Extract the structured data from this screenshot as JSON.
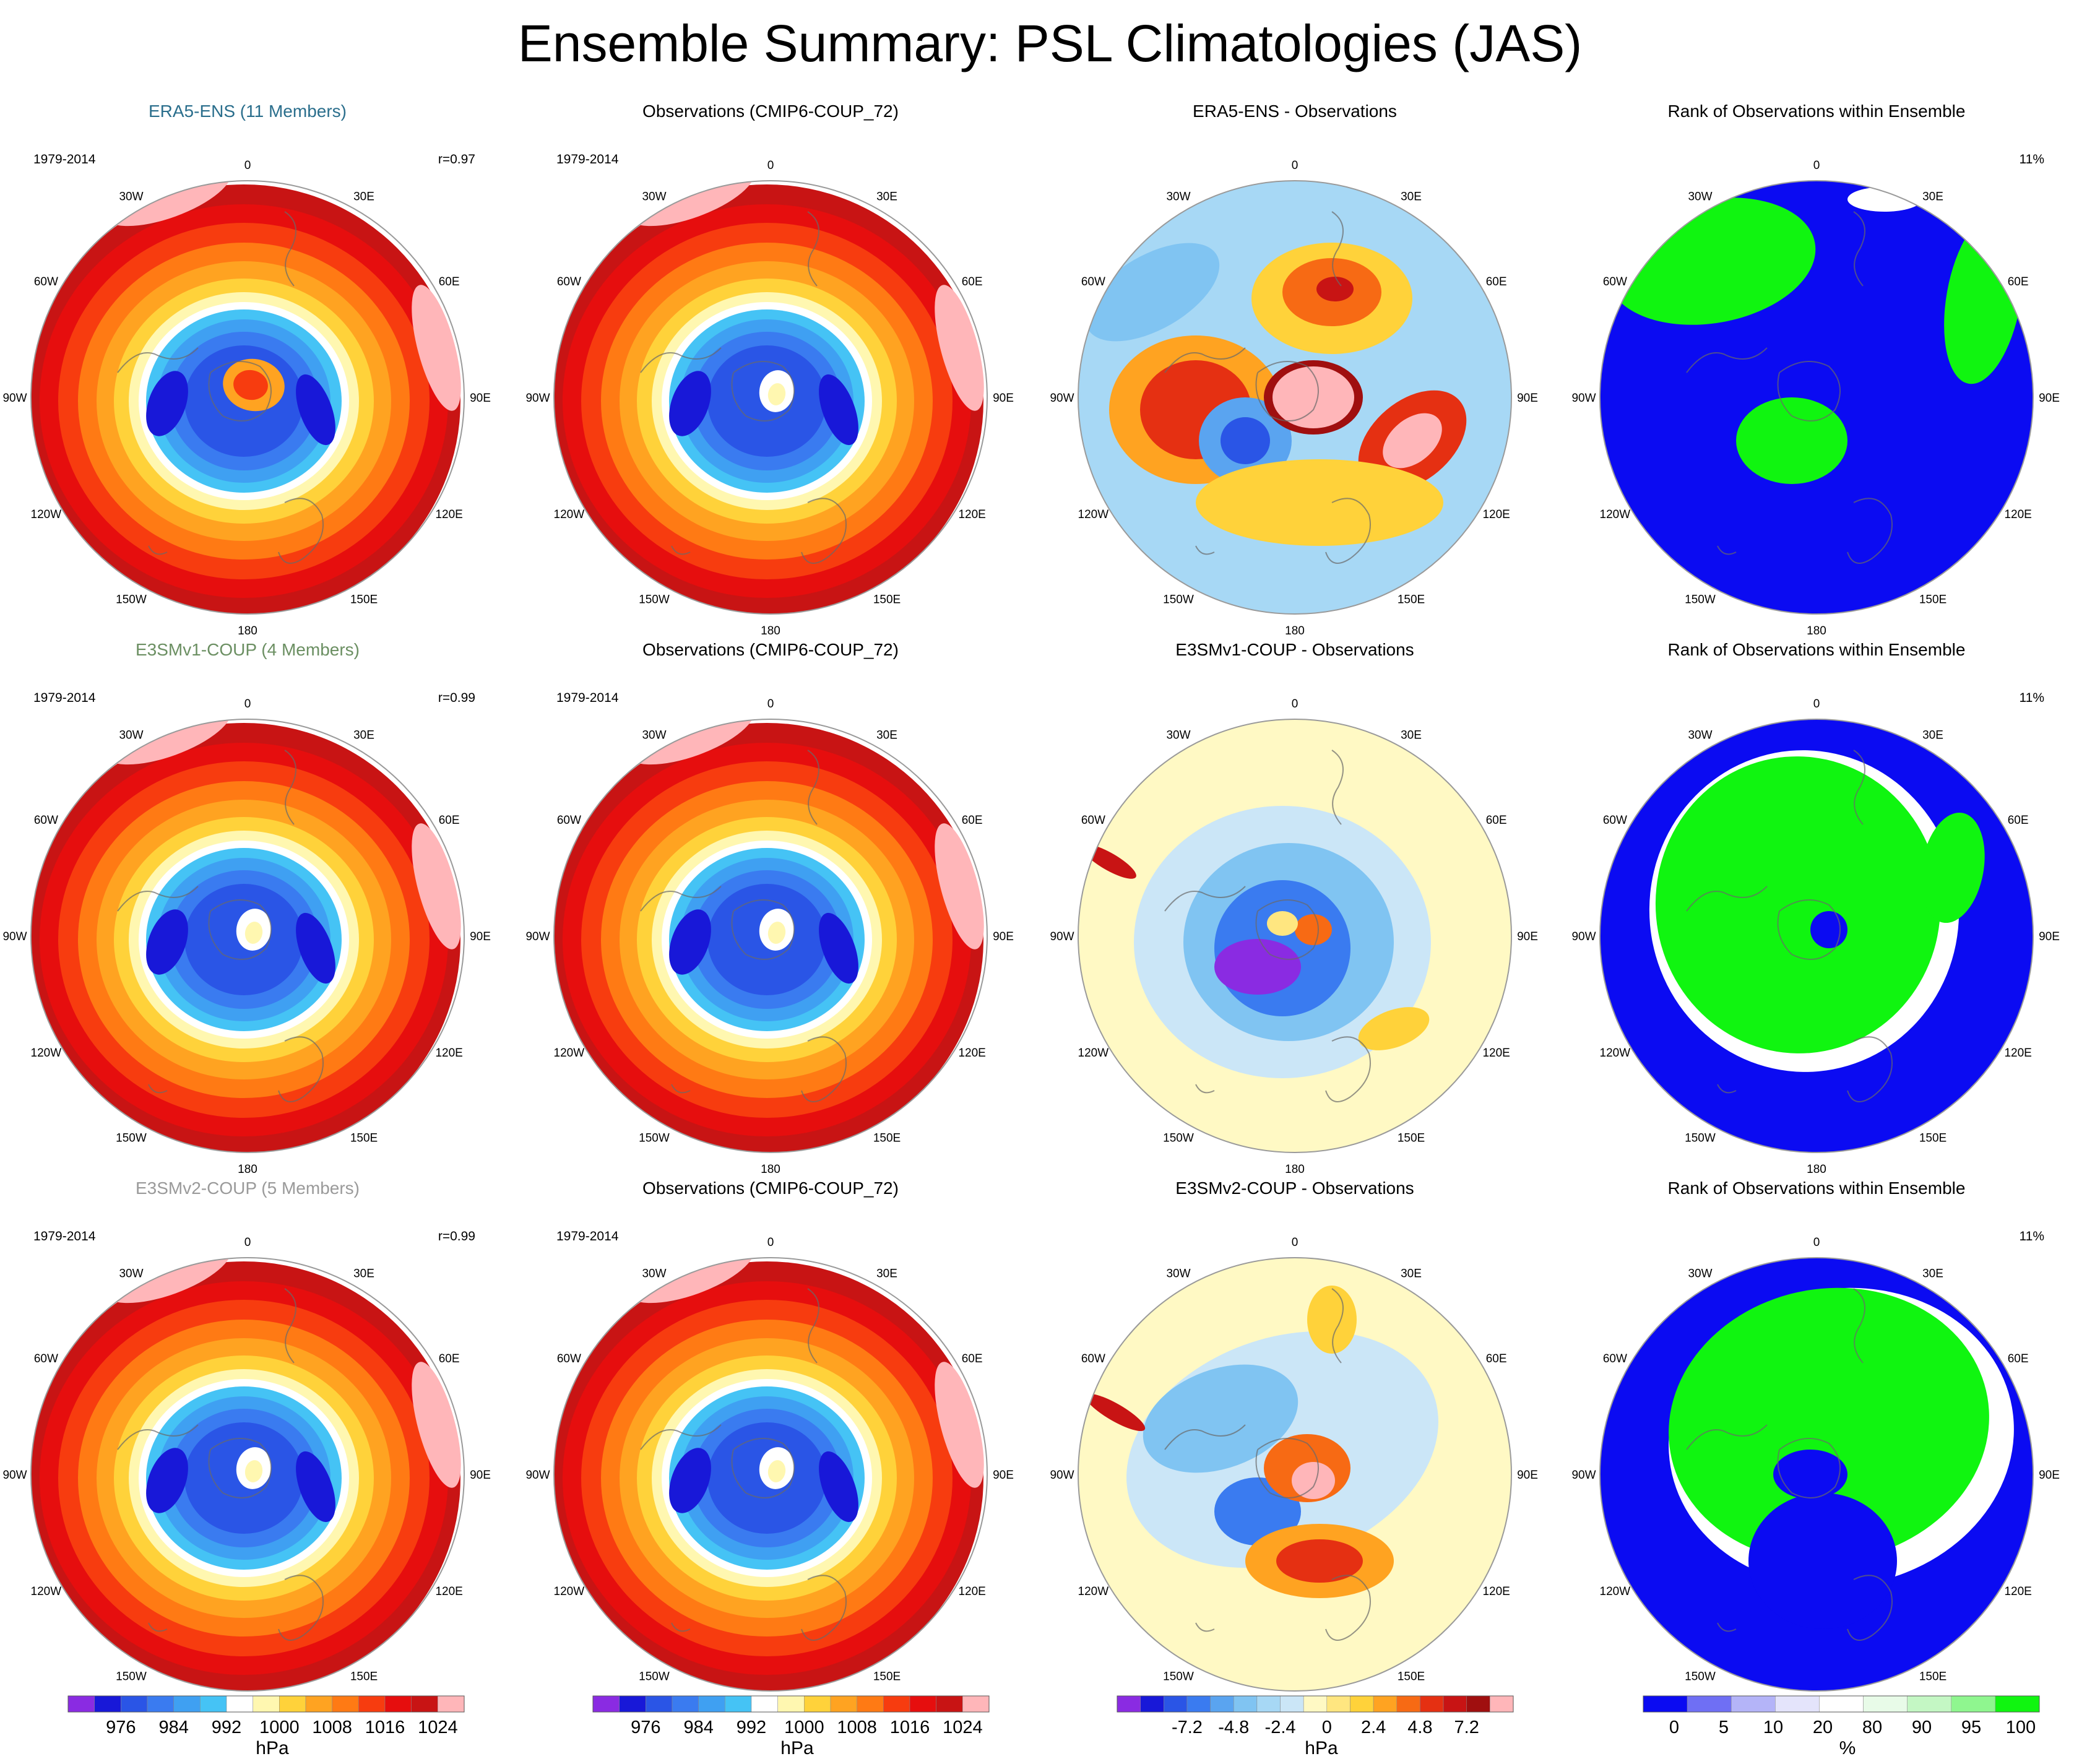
{
  "title": "Ensemble Summary: PSL Climatologies (JAS)",
  "colors": {
    "model_era5": "#2a6e8c",
    "model_e3smv1": "#6b8f62",
    "model_e3smv2": "#9a9a9a",
    "generic_title": "#000000",
    "psl_palette": [
      "#8a2be2",
      "#1818d8",
      "#2a55e6",
      "#3a7bf0",
      "#3fa0f2",
      "#45c3f5",
      "#ffffff",
      "#fff7b0",
      "#ffd23a",
      "#ffa321",
      "#ff7a14",
      "#f73c0f",
      "#e60e0e",
      "#c81414",
      "#ffb6b9"
    ],
    "diff_palette": [
      "#8a2be2",
      "#1818d8",
      "#2a55e6",
      "#3a7bf0",
      "#5aa4f0",
      "#80c4f2",
      "#a7d8f5",
      "#cbe6f7",
      "#fff9c4",
      "#ffe680",
      "#ffd23a",
      "#ffa321",
      "#f76a14",
      "#e53012",
      "#c81414",
      "#a00f0f",
      "#ffb6b9"
    ],
    "rank_palette": [
      "#0b0bf2",
      "#6f6ff4",
      "#b4b4f8",
      "#e4e4fb",
      "#ffffff",
      "#e8fbe8",
      "#c4f7c4",
      "#8ff68f",
      "#10f510"
    ],
    "map_outline": "#9a9a9a",
    "coastline": "#6a6a6a"
  },
  "lon_labels": [
    "0",
    "30E",
    "60E",
    "90E",
    "120E",
    "150E",
    "180",
    "150W",
    "120W",
    "90W",
    "60W",
    "30W"
  ],
  "rows": [
    {
      "panels": [
        {
          "type": "model",
          "title": "ERA5-ENS (11 Members)",
          "color_key": "model_era5",
          "period": "1979-2014",
          "stat": "r=0.97"
        },
        {
          "type": "obs",
          "title": "Observations (CMIP6-COUP_72)",
          "period": "1979-2014"
        },
        {
          "type": "diff",
          "title": "ERA5-ENS - Observations",
          "variant": 0
        },
        {
          "type": "rank",
          "title": "Rank of Observations within Ensemble",
          "stat": "11%",
          "variant": 0
        }
      ]
    },
    {
      "panels": [
        {
          "type": "model",
          "title": "E3SMv1-COUP (4 Members)",
          "color_key": "model_e3smv1",
          "period": "1979-2014",
          "stat": "r=0.99"
        },
        {
          "type": "obs",
          "title": "Observations (CMIP6-COUP_72)",
          "period": "1979-2014"
        },
        {
          "type": "diff",
          "title": "E3SMv1-COUP - Observations",
          "variant": 1
        },
        {
          "type": "rank",
          "title": "Rank of Observations within Ensemble",
          "stat": "11%",
          "variant": 1
        }
      ]
    },
    {
      "panels": [
        {
          "type": "model",
          "title": "E3SMv2-COUP (5 Members)",
          "color_key": "model_e3smv2",
          "period": "1979-2014",
          "stat": "r=0.99"
        },
        {
          "type": "obs",
          "title": "Observations (CMIP6-COUP_72)",
          "period": "1979-2014"
        },
        {
          "type": "diff",
          "title": "E3SMv2-COUP - Observations",
          "variant": 2
        },
        {
          "type": "rank",
          "title": "Rank of Observations within Ensemble",
          "stat": "11%",
          "variant": 2
        }
      ]
    }
  ],
  "colorbars": [
    {
      "name": "psl-colorbar-1",
      "units": "hPa",
      "palette": "psl_palette",
      "ticks": [
        "976",
        "984",
        "992",
        "1000",
        "1008",
        "1016",
        "1024"
      ]
    },
    {
      "name": "psl-colorbar-2",
      "units": "hPa",
      "palette": "psl_palette",
      "ticks": [
        "976",
        "984",
        "992",
        "1000",
        "1008",
        "1016",
        "1024"
      ]
    },
    {
      "name": "diff-colorbar",
      "units": "hPa",
      "palette": "diff_palette",
      "ticks": [
        "-7.2",
        "-4.8",
        "-2.4",
        "0",
        "2.4",
        "4.8",
        "7.2"
      ]
    },
    {
      "name": "rank-colorbar",
      "units": "%",
      "palette": "rank_palette",
      "ticks": [
        "0",
        "5",
        "10",
        "20",
        "80",
        "90",
        "95",
        "100"
      ]
    }
  ]
}
